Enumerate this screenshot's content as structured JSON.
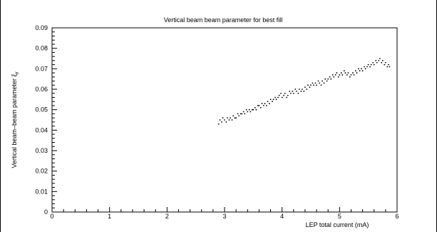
{
  "chart_data": {
    "type": "scatter",
    "title": "Vertical beam beam parameter for best fill",
    "xlabel": "LEP total current (mA)",
    "ylabel": "Vertical beam–beam parameter ξ",
    "ylabel_subscript": "y",
    "xlim": [
      0,
      6
    ],
    "ylim": [
      0,
      0.09
    ],
    "x_ticks": [
      "0",
      "1",
      "2",
      "3",
      "4",
      "5",
      "6"
    ],
    "y_ticks": [
      "0",
      "0.01",
      "0.02",
      "0.03",
      "0.04",
      "0.05",
      "0.06",
      "0.07",
      "0.08",
      "0.09"
    ],
    "grid": false,
    "marker_color": "#000000",
    "series": [
      {
        "points": [
          [
            2.9,
            0.043
          ],
          [
            2.92,
            0.045
          ],
          [
            2.95,
            0.044
          ],
          [
            2.97,
            0.046
          ],
          [
            3.0,
            0.045
          ],
          [
            3.03,
            0.044
          ],
          [
            3.05,
            0.046
          ],
          [
            3.08,
            0.045
          ],
          [
            3.1,
            0.046
          ],
          [
            3.13,
            0.045
          ],
          [
            3.15,
            0.047
          ],
          [
            3.18,
            0.046
          ],
          [
            3.2,
            0.046
          ],
          [
            3.23,
            0.048
          ],
          [
            3.25,
            0.047
          ],
          [
            3.28,
            0.048
          ],
          [
            3.3,
            0.048
          ],
          [
            3.33,
            0.049
          ],
          [
            3.35,
            0.048
          ],
          [
            3.38,
            0.05
          ],
          [
            3.4,
            0.049
          ],
          [
            3.43,
            0.05
          ],
          [
            3.45,
            0.049
          ],
          [
            3.48,
            0.05
          ],
          [
            3.5,
            0.05
          ],
          [
            3.53,
            0.051
          ],
          [
            3.55,
            0.05
          ],
          [
            3.58,
            0.052
          ],
          [
            3.6,
            0.052
          ],
          [
            3.63,
            0.051
          ],
          [
            3.65,
            0.053
          ],
          [
            3.68,
            0.052
          ],
          [
            3.7,
            0.053
          ],
          [
            3.73,
            0.052
          ],
          [
            3.75,
            0.054
          ],
          [
            3.78,
            0.053
          ],
          [
            3.8,
            0.055
          ],
          [
            3.83,
            0.054
          ],
          [
            3.85,
            0.055
          ],
          [
            3.88,
            0.056
          ],
          [
            3.9,
            0.055
          ],
          [
            3.93,
            0.056
          ],
          [
            3.95,
            0.057
          ],
          [
            3.98,
            0.058
          ],
          [
            4.0,
            0.056
          ],
          [
            4.03,
            0.057
          ],
          [
            4.05,
            0.058
          ],
          [
            4.08,
            0.056
          ],
          [
            4.1,
            0.057
          ],
          [
            4.13,
            0.059
          ],
          [
            4.15,
            0.058
          ],
          [
            4.18,
            0.059
          ],
          [
            4.2,
            0.058
          ],
          [
            4.23,
            0.06
          ],
          [
            4.25,
            0.059
          ],
          [
            4.28,
            0.058
          ],
          [
            4.3,
            0.06
          ],
          [
            4.33,
            0.059
          ],
          [
            4.35,
            0.06
          ],
          [
            4.38,
            0.059
          ],
          [
            4.4,
            0.061
          ],
          [
            4.43,
            0.06
          ],
          [
            4.45,
            0.062
          ],
          [
            4.48,
            0.061
          ],
          [
            4.5,
            0.062
          ],
          [
            4.53,
            0.063
          ],
          [
            4.55,
            0.062
          ],
          [
            4.58,
            0.063
          ],
          [
            4.6,
            0.062
          ],
          [
            4.63,
            0.064
          ],
          [
            4.65,
            0.063
          ],
          [
            4.68,
            0.062
          ],
          [
            4.7,
            0.064
          ],
          [
            4.73,
            0.063
          ],
          [
            4.75,
            0.065
          ],
          [
            4.78,
            0.064
          ],
          [
            4.8,
            0.065
          ],
          [
            4.83,
            0.066
          ],
          [
            4.85,
            0.065
          ],
          [
            4.88,
            0.067
          ],
          [
            4.9,
            0.066
          ],
          [
            4.93,
            0.067
          ],
          [
            4.95,
            0.068
          ],
          [
            4.98,
            0.066
          ],
          [
            5.0,
            0.067
          ],
          [
            5.03,
            0.068
          ],
          [
            5.05,
            0.067
          ],
          [
            5.08,
            0.069
          ],
          [
            5.1,
            0.068
          ],
          [
            5.13,
            0.067
          ],
          [
            5.15,
            0.068
          ],
          [
            5.18,
            0.066
          ],
          [
            5.2,
            0.067
          ],
          [
            5.23,
            0.068
          ],
          [
            5.25,
            0.067
          ],
          [
            5.28,
            0.069
          ],
          [
            5.3,
            0.068
          ],
          [
            5.33,
            0.07
          ],
          [
            5.35,
            0.069
          ],
          [
            5.38,
            0.07
          ],
          [
            5.4,
            0.069
          ],
          [
            5.43,
            0.071
          ],
          [
            5.45,
            0.07
          ],
          [
            5.48,
            0.071
          ],
          [
            5.5,
            0.072
          ],
          [
            5.53,
            0.071
          ],
          [
            5.55,
            0.072
          ],
          [
            5.58,
            0.073
          ],
          [
            5.6,
            0.072
          ],
          [
            5.63,
            0.074
          ],
          [
            5.65,
            0.073
          ],
          [
            5.68,
            0.074
          ],
          [
            5.7,
            0.075
          ],
          [
            5.73,
            0.073
          ],
          [
            5.75,
            0.074
          ],
          [
            5.78,
            0.072
          ],
          [
            5.8,
            0.073
          ],
          [
            5.83,
            0.071
          ],
          [
            5.85,
            0.072
          ],
          [
            5.87,
            0.071
          ]
        ]
      }
    ]
  }
}
